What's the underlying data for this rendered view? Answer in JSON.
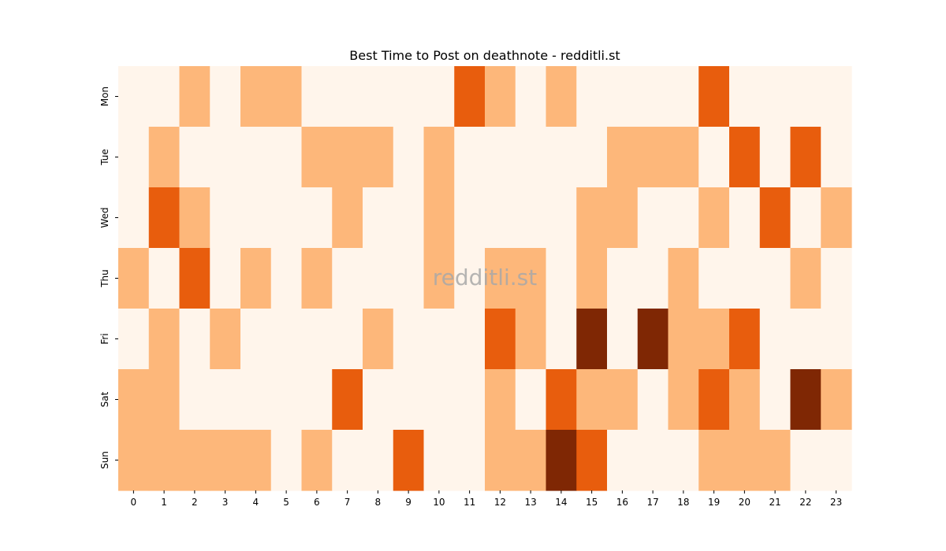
{
  "chart_data": {
    "type": "heatmap",
    "title": "Best Time to Post on deathnote - redditli.st",
    "watermark": "redditli.st",
    "x_categories": [
      "0",
      "1",
      "2",
      "3",
      "4",
      "5",
      "6",
      "7",
      "8",
      "9",
      "10",
      "11",
      "12",
      "13",
      "14",
      "15",
      "16",
      "17",
      "18",
      "19",
      "20",
      "21",
      "22",
      "23"
    ],
    "y_categories": [
      "Mon",
      "Tue",
      "Wed",
      "Thu",
      "Fri",
      "Sat",
      "Sun"
    ],
    "values": [
      [
        0,
        0,
        1,
        0,
        1,
        1,
        0,
        0,
        0,
        0,
        0,
        2,
        1,
        0,
        1,
        0,
        0,
        0,
        0,
        2,
        0,
        0,
        0,
        0
      ],
      [
        0,
        1,
        0,
        0,
        0,
        0,
        1,
        1,
        1,
        0,
        1,
        0,
        0,
        0,
        0,
        0,
        1,
        1,
        1,
        0,
        2,
        0,
        2,
        0
      ],
      [
        0,
        2,
        1,
        0,
        0,
        0,
        0,
        1,
        0,
        0,
        1,
        0,
        0,
        0,
        0,
        1,
        1,
        0,
        0,
        1,
        0,
        2,
        0,
        1
      ],
      [
        1,
        0,
        2,
        0,
        1,
        0,
        1,
        0,
        0,
        0,
        1,
        0,
        1,
        1,
        0,
        1,
        0,
        0,
        1,
        0,
        0,
        0,
        1,
        0
      ],
      [
        0,
        1,
        0,
        1,
        0,
        0,
        0,
        0,
        1,
        0,
        0,
        0,
        2,
        1,
        0,
        3,
        0,
        3,
        1,
        1,
        2,
        0,
        0,
        0
      ],
      [
        1,
        1,
        0,
        0,
        0,
        0,
        0,
        2,
        0,
        0,
        0,
        0,
        1,
        0,
        2,
        1,
        1,
        0,
        1,
        2,
        1,
        0,
        3,
        1
      ],
      [
        1,
        1,
        1,
        1,
        1,
        0,
        1,
        0,
        0,
        2,
        0,
        0,
        1,
        1,
        3,
        2,
        0,
        0,
        0,
        1,
        1,
        1,
        0,
        0
      ]
    ],
    "colormap": [
      "#fff5eb",
      "#fdb77a",
      "#e85d0d",
      "#7f2704"
    ],
    "grid": false
  }
}
